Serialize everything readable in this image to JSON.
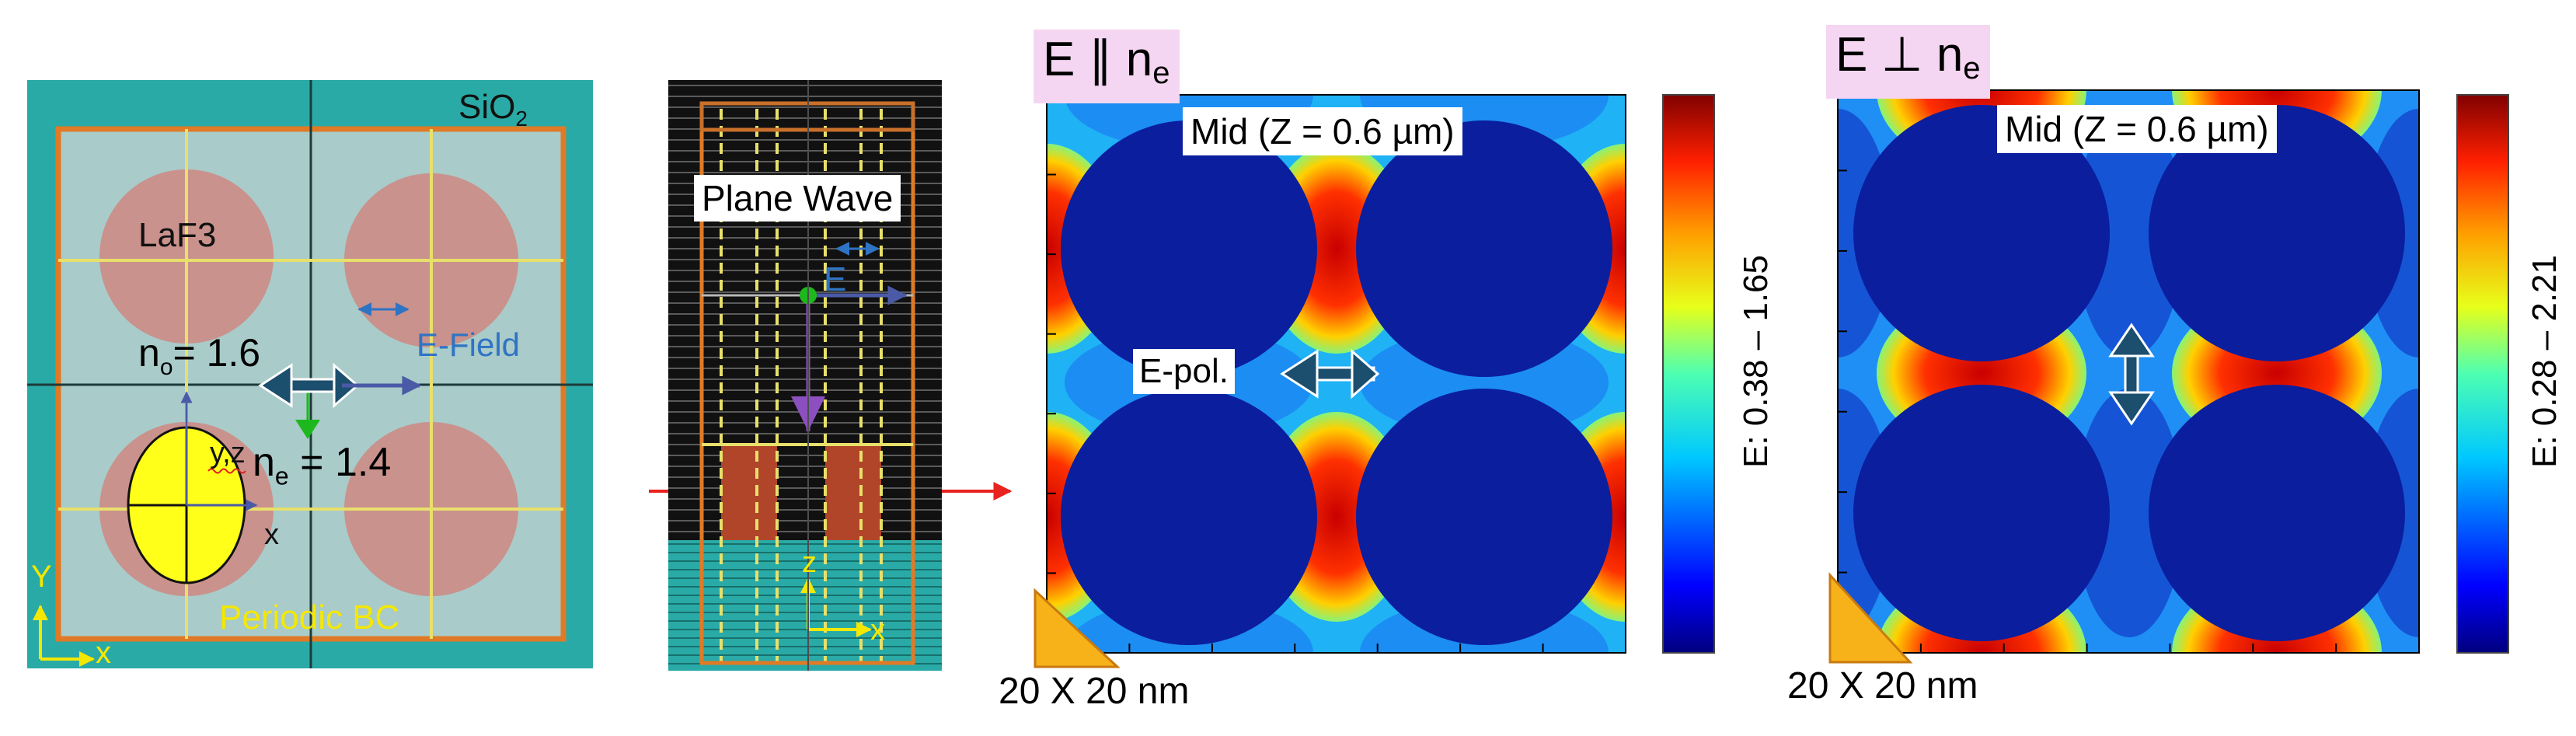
{
  "schematic": {
    "top_label": "SiO",
    "top_label_sub": "2",
    "material_label": "LaF3",
    "efield_label": "E-Field",
    "n_o_prefix": "n",
    "n_o_sub": "o",
    "n_o_value": "= 1.6",
    "n_e_prefix": "n",
    "n_e_sub": "e",
    "n_e_value": " = 1.4",
    "yz_label": "y,z",
    "x_label": "x",
    "bc_label": "Periodic BC",
    "axis_y": "Y",
    "axis_x": "x"
  },
  "side_view": {
    "plane_wave_label": "Plane Wave",
    "e_label": "E",
    "axis_z": "z",
    "axis_x": "x"
  },
  "panel_parallel": {
    "title_prefix": "E ∥ n",
    "title_sub": "e",
    "mid_label": "Mid (Z = 0.6 µm)",
    "epol_label": "E-pol.",
    "colorbar_label": "E: 0.38 – 1.65",
    "scale_label": "20 X 20 nm"
  },
  "panel_perp": {
    "title_prefix": "E ⊥ n",
    "title_sub": "e",
    "mid_label": "Mid (Z = 0.6 µm)",
    "colorbar_label": "E: 0.28 – 2.21",
    "scale_label": "20 X 20 nm"
  },
  "colors": {
    "teal_background": "#2aaaa6",
    "cell_fill": "#a9cbc9",
    "cell_border": "#e07a26",
    "circle_fill": "#c9928d",
    "grid_line": "#e8e06a",
    "ellipse_fill": "#ffff1a",
    "arrow_dark": "#1c4e6e",
    "efield_blue": "#2f73c4",
    "field_dark_blue": "#0a1e9e",
    "bc_yellow": "#f5e800",
    "red_arrow": "#e8231f",
    "scale_triangle": "#f7b21a"
  }
}
